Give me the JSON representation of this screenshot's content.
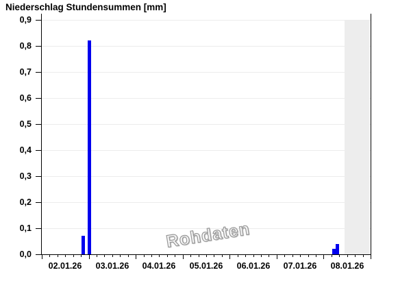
{
  "title": "Niederschlag Stundensummen [mm]",
  "watermark": "Rohdaten",
  "colors": {
    "bar": "#0000ee",
    "nodata_region": "#ededed",
    "gridline": "#ececec",
    "axis": "#000000",
    "watermark": "#979797"
  },
  "chart_data": {
    "type": "bar",
    "title": "Niederschlag Stundensummen [mm]",
    "xlabel": "",
    "ylabel": "mm",
    "ylim": [
      0.0,
      0.9
    ],
    "grid": "horizontal",
    "legend_position": "none",
    "y_ticks": [
      {
        "value": 0.9,
        "label": "0,9"
      },
      {
        "value": 0.8,
        "label": "0,8"
      },
      {
        "value": 0.7,
        "label": "0,7"
      },
      {
        "value": 0.6,
        "label": "0,6"
      },
      {
        "value": 0.5,
        "label": "0,5"
      },
      {
        "value": 0.4,
        "label": "0,4"
      },
      {
        "value": 0.3,
        "label": "0,3"
      },
      {
        "value": 0.2,
        "label": "0,2"
      },
      {
        "value": 0.1,
        "label": "0,1"
      },
      {
        "value": 0.0,
        "label": "0,0"
      }
    ],
    "x_tick_labels": [
      "02.01.26",
      "03.01.26",
      "04.01.26",
      "05.01.26",
      "06.01.26",
      "07.01.26",
      "08.01.26"
    ],
    "days_shown": 7,
    "x_minor_divisions_per_day": 6,
    "bars": [
      {
        "time": "02.01.26 21:00",
        "day_offset": 0.875,
        "value": 0.07
      },
      {
        "time": "03.01.26 00:00",
        "day_offset": 1.0,
        "value": 0.82
      },
      {
        "time": "08.01.26 05:00",
        "day_offset": 6.21,
        "value": 0.02
      },
      {
        "time": "08.01.26 07:00",
        "day_offset": 6.292,
        "value": 0.04
      }
    ],
    "nodata_region": {
      "start_day_offset": 6.44,
      "end_day_offset": 6.98
    }
  }
}
